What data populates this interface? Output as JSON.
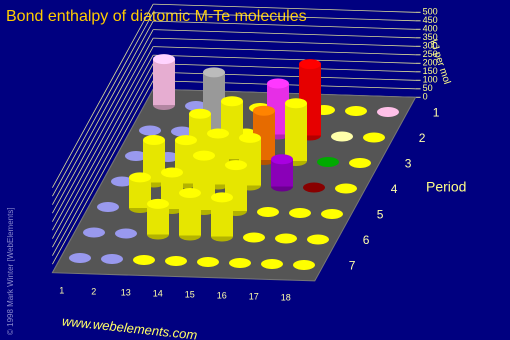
{
  "chart_data": {
    "type": "bar3d",
    "title": "Bond enthalpy of diatomic M-Te molecules",
    "y_label": "kJ per mol",
    "period_label": "Period",
    "periods": [
      "1",
      "2",
      "3",
      "4",
      "5",
      "6",
      "7"
    ],
    "categories": [
      "1",
      "2",
      "13",
      "14",
      "15",
      "16",
      "17",
      "18"
    ],
    "ylim": [
      0,
      500
    ],
    "yticks": [
      0,
      50,
      100,
      150,
      200,
      250,
      300,
      350,
      400,
      450,
      500
    ],
    "grid": true,
    "series": [
      {
        "name": "1",
        "values": [
          270,
          null,
          null,
          null,
          null,
          null,
          null,
          null
        ],
        "colors": [
          "#ffc0e8",
          "#9999ee",
          "#ffff00",
          "#ffff00",
          "#ffff00",
          "#ffff00",
          "#ffff00",
          "#ffc0e8"
        ]
      },
      {
        "name": "2",
        "values": [
          null,
          null,
          354,
          null,
          300,
          420,
          null,
          null
        ],
        "colors": [
          "#9999ee",
          "#9999ee",
          "#aaaaaa",
          "#ffff00",
          "#ff33ff",
          "#ff0000",
          "#ffffaa",
          "#ffff00"
        ]
      },
      {
        "name": "3",
        "values": [
          null,
          null,
          260,
          340,
          290,
          340,
          null,
          null
        ],
        "colors": [
          "#9999ee",
          "#9999ee",
          "#ffff00",
          "#ffff00",
          "#ff7700",
          "#ffff00",
          "#00aa00",
          "#ffff00"
        ]
      },
      {
        "name": "4",
        "values": [
          null,
          250,
          255,
          300,
          280,
          160,
          null,
          null
        ],
        "colors": [
          "#9999ee",
          "#ffff00",
          "#ffff00",
          "#ffff00",
          "#ffff00",
          "#9900cc",
          "#880000",
          "#ffff00"
        ]
      },
      {
        "name": "5",
        "values": [
          null,
          180,
          215,
          320,
          270,
          null,
          null,
          null
        ],
        "colors": [
          "#9999ee",
          "#ffff00",
          "#ffff00",
          "#ffff00",
          "#ffff00",
          "#ffff00",
          "#ffff00",
          "#ffff00"
        ]
      },
      {
        "name": "6",
        "values": [
          null,
          null,
          180,
          250,
          230,
          null,
          null,
          null
        ],
        "colors": [
          "#9999ee",
          "#9999ee",
          "#ffff00",
          "#ffff00",
          "#ffff00",
          "#ffff00",
          "#ffff00",
          "#ffff00"
        ]
      },
      {
        "name": "7",
        "values": [
          null,
          null,
          null,
          null,
          null,
          null,
          null,
          null
        ],
        "colors": [
          "#9999ee",
          "#9999ee",
          "#ffff00",
          "#ffff00",
          "#ffff00",
          "#ffff00",
          "#ffff00",
          "#ffff00"
        ]
      }
    ],
    "website": "www.webelements.com",
    "copyright": "© 1998 Mark Winter [WebElements]"
  }
}
